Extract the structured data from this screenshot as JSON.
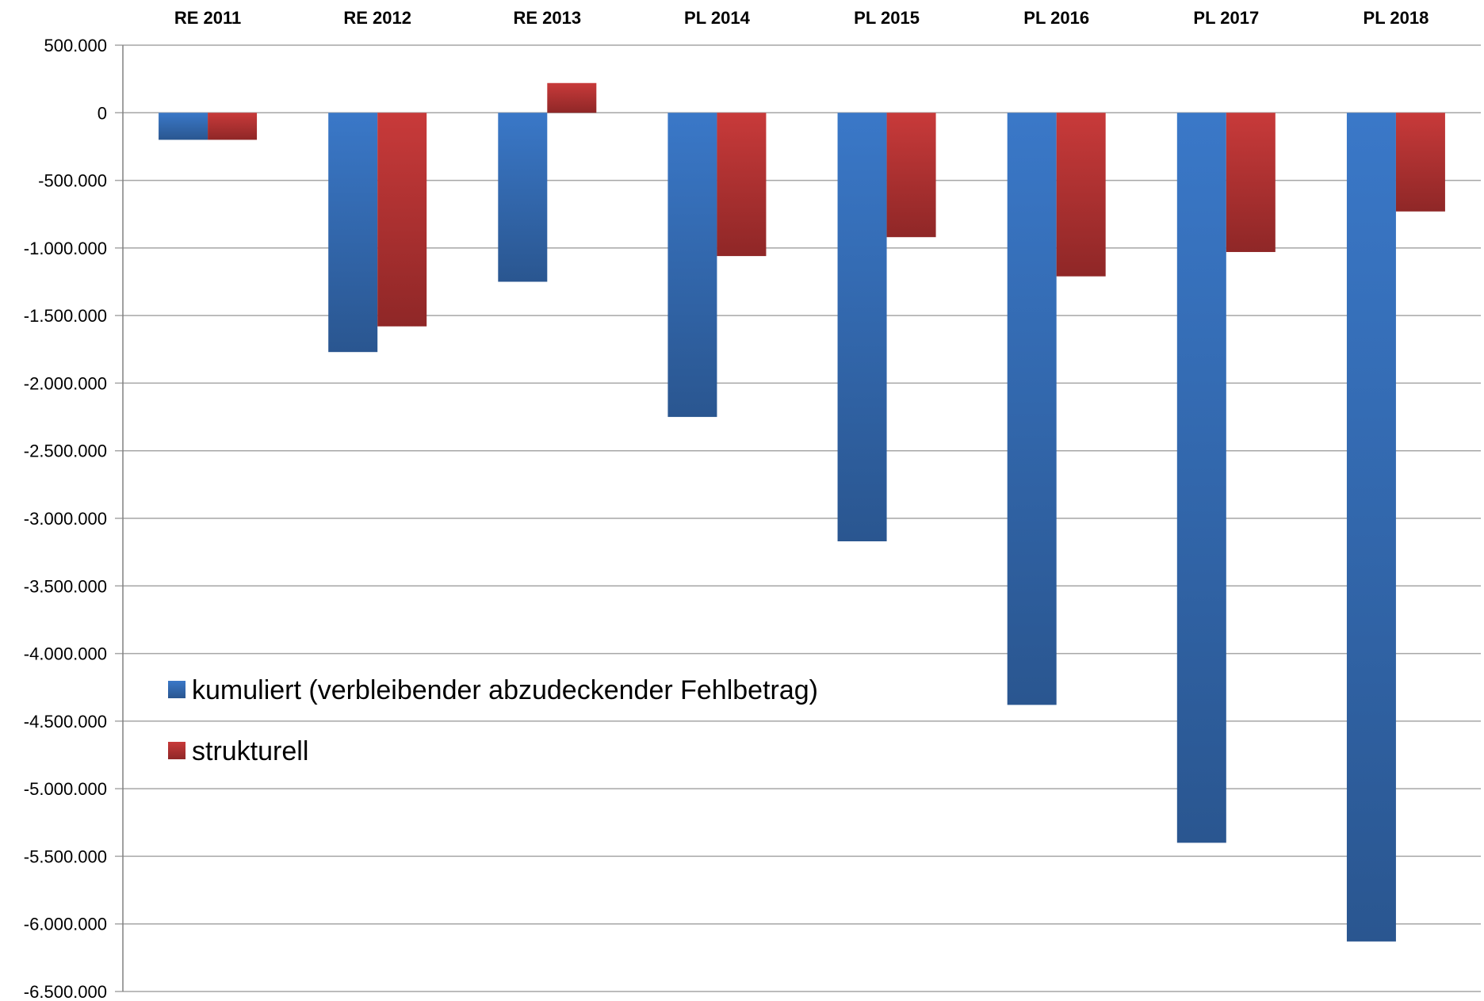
{
  "chart_data": {
    "type": "bar",
    "categories": [
      "RE 2011",
      "RE 2012",
      "RE 2013",
      "PL 2014",
      "PL 2015",
      "PL 2016",
      "PL 2017",
      "PL 2018"
    ],
    "series": [
      {
        "name": "kumuliert (verbleibender abzudeckender Fehlbetrag)",
        "color": "#3a78c8",
        "color_dark": "#2a5690",
        "values": [
          -200000,
          -1770000,
          -1250000,
          -2250000,
          -3170000,
          -4380000,
          -5400000,
          -6130000
        ]
      },
      {
        "name": "strukturell",
        "color": "#c83a3a",
        "color_dark": "#8f2727",
        "values": [
          -200000,
          -1580000,
          220000,
          -1060000,
          -920000,
          -1210000,
          -1030000,
          -730000
        ]
      }
    ],
    "ylim": [
      -6500000,
      500000
    ],
    "ytick_step": 500000,
    "yticks": [
      "500.000",
      "0",
      "-500.000",
      "-1.000.000",
      "-1.500.000",
      "-2.000.000",
      "-2.500.000",
      "-3.000.000",
      "-3.500.000",
      "-4.000.000",
      "-4.500.000",
      "-5.000.000",
      "-5.500.000",
      "-6.000.000",
      "-6.500.000"
    ],
    "category_labels_position": "top",
    "grid": true,
    "legend": "inside-lower-left",
    "title": "",
    "xlabel": "",
    "ylabel": ""
  }
}
